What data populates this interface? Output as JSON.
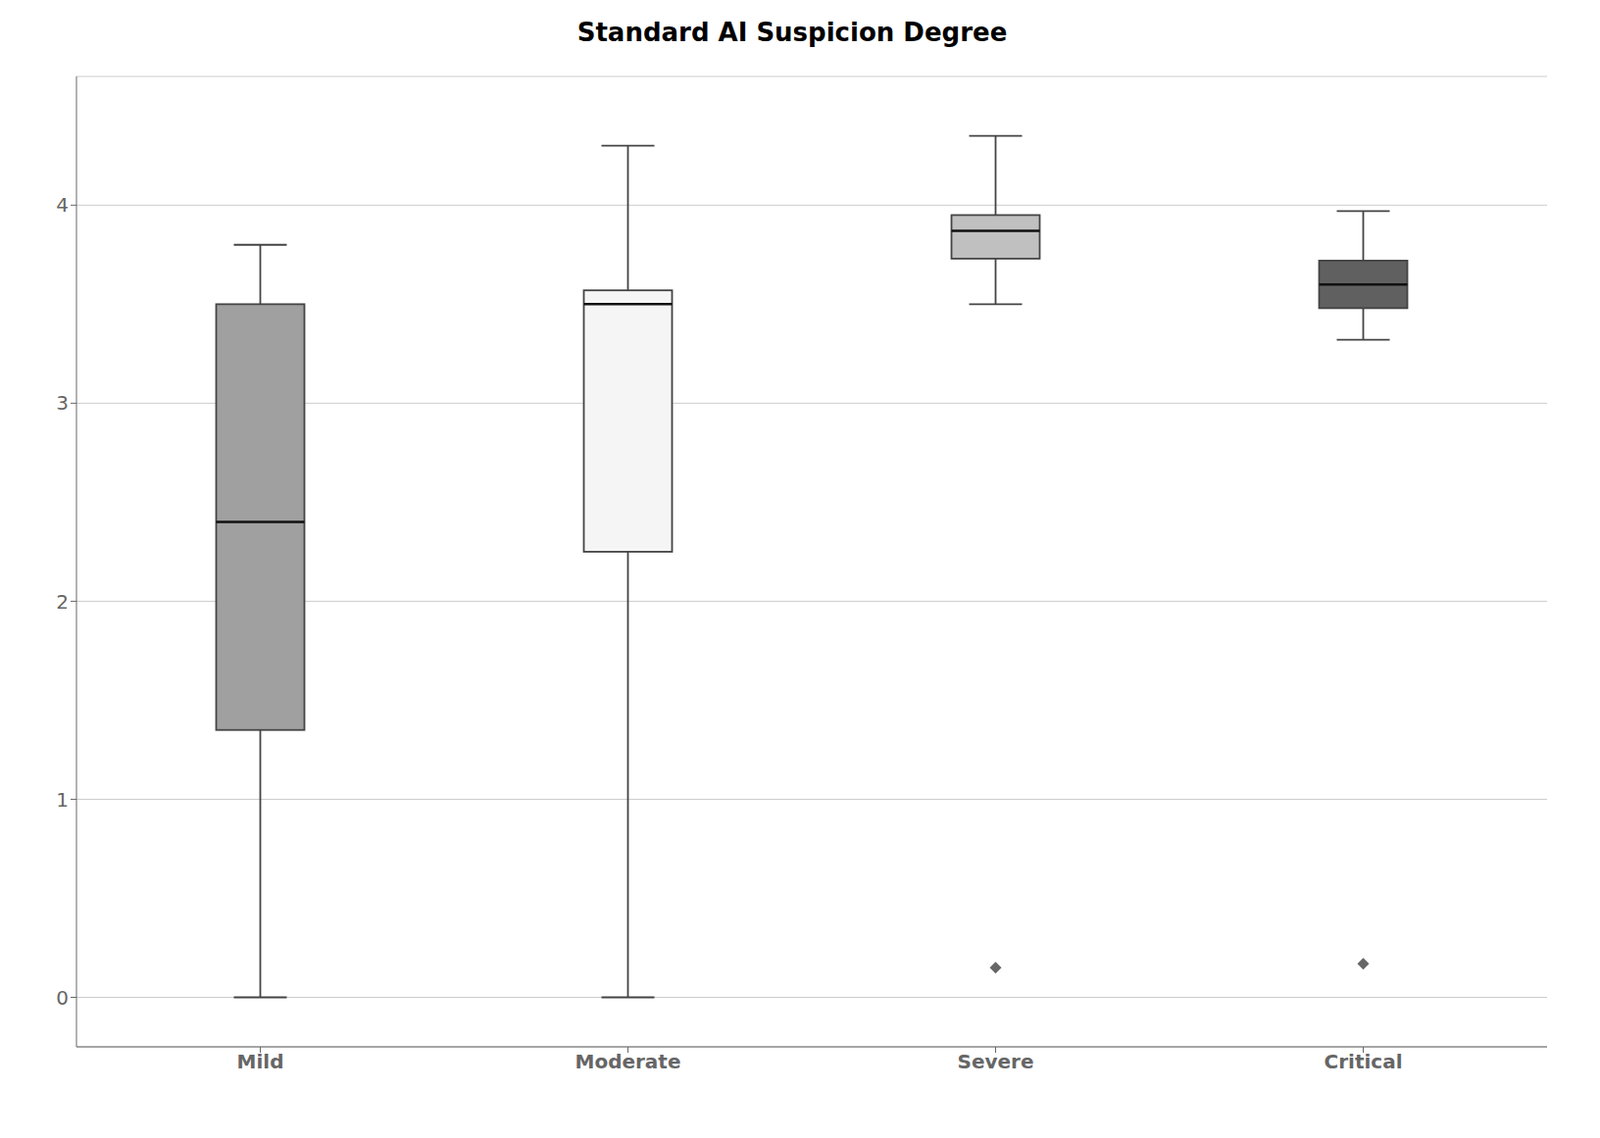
{
  "chart_data": {
    "type": "box",
    "title": "Standard AI Suspicion Degree",
    "categories": [
      "Mild",
      "Moderate",
      "Severe",
      "Critical"
    ],
    "whisker_low": [
      0.0,
      0.0,
      3.5,
      3.32
    ],
    "q1": [
      1.35,
      2.25,
      3.73,
      3.48
    ],
    "median": [
      2.4,
      3.5,
      3.87,
      3.6
    ],
    "q3": [
      3.5,
      3.57,
      3.95,
      3.72
    ],
    "whisker_high": [
      3.8,
      4.3,
      4.35,
      3.97
    ],
    "outliers": [
      [],
      [],
      [
        0.15
      ],
      [
        0.17
      ]
    ],
    "colors": [
      "#a0a0a0",
      "#f5f5f5",
      "#c0c0c0",
      "#606060"
    ],
    "ylim": [
      -0.25,
      4.65
    ],
    "yticks": [
      0,
      1,
      2,
      3,
      4
    ],
    "grid": true
  }
}
